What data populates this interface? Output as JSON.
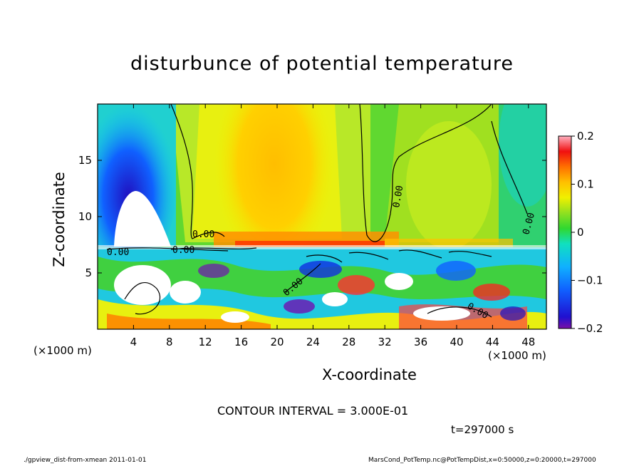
{
  "chart_data": {
    "type": "heatmap",
    "title": "disturbunce of potential temperature",
    "xlabel": "X-coordinate",
    "ylabel": "Z-coordinate",
    "x_unit_left": "(×1000 m)",
    "x_unit_right": "(×1000 m)",
    "xlim": [
      0,
      50
    ],
    "ylim": [
      0,
      20
    ],
    "x_ticks": [
      4,
      8,
      12,
      16,
      20,
      24,
      28,
      32,
      36,
      40,
      44,
      48
    ],
    "y_ticks": [
      5,
      10,
      15
    ],
    "colorbar": {
      "range": [
        -0.2,
        0.2
      ],
      "ticks": [
        -0.2,
        -0.1,
        0,
        0.1,
        0.2
      ],
      "tick_labels": [
        "−0.2",
        "−0.1",
        "0",
        "0.1",
        "0.2"
      ]
    },
    "contour_labels": [
      "0.00",
      "0.00",
      "0.00",
      "0.00",
      "0.00",
      "0.00",
      "0.00"
    ],
    "contour_interval_text": "CONTOUR INTERVAL = 3.000E-01",
    "time_text": "t=297000 s"
  },
  "footer": {
    "left": "./gpview_dist-from-xmean  2011-01-01",
    "right": "MarsCond_PotTemp.nc@PotTempDist,x=0:50000,z=0:20000,t=297000"
  }
}
